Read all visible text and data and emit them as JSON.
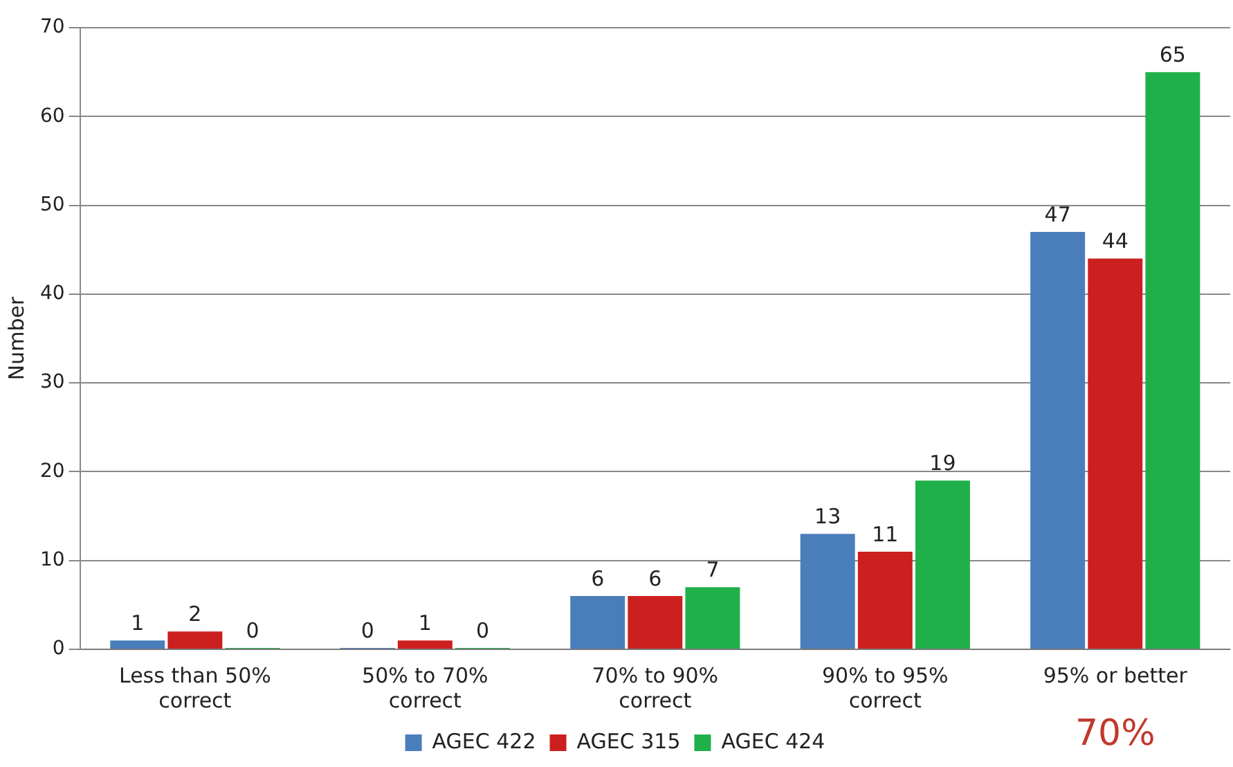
{
  "chart_data": {
    "type": "bar",
    "ylabel": "Number",
    "categories": [
      "Less than 50% correct",
      "50% to 70% correct",
      "70% to 90% correct",
      "90% to 95% correct",
      "95% or better"
    ],
    "series": [
      {
        "name": "AGEC 422",
        "color": "#4a7ebb",
        "values": [
          1,
          0,
          6,
          13,
          47
        ]
      },
      {
        "name": "AGEC 315",
        "color": "#cc1f1f",
        "values": [
          2,
          1,
          6,
          11,
          44
        ]
      },
      {
        "name": "AGEC 424",
        "color": "#20b04a",
        "values": [
          0,
          0,
          7,
          19,
          65
        ]
      }
    ],
    "ylim": [
      0,
      70
    ],
    "yticks": [
      0,
      10,
      20,
      30,
      40,
      50,
      60,
      70
    ],
    "grid": "y",
    "legend": "bottom",
    "data_labels": true,
    "annotations": [
      "70%"
    ]
  }
}
